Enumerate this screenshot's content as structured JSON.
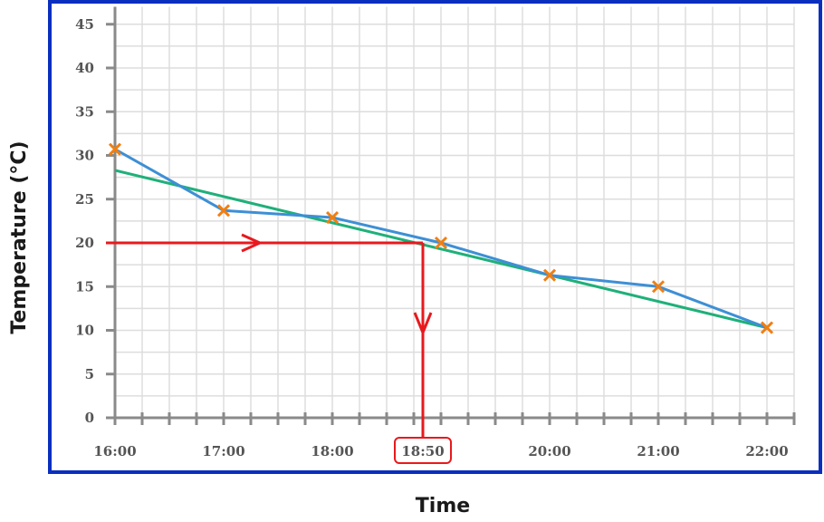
{
  "chart_data": {
    "type": "line",
    "xlabel": "Time",
    "ylabel": "Temperature (°C)",
    "x_tick_labels": [
      "16:00",
      "17:00",
      "18:00",
      "18:50",
      "20:00",
      "21:00",
      "22:00"
    ],
    "x_tick_minutes": [
      0,
      60,
      120,
      170,
      240,
      300,
      360
    ],
    "y_ticks": [
      0,
      5,
      10,
      15,
      20,
      25,
      30,
      35,
      40,
      45
    ],
    "ylim": [
      0,
      47
    ],
    "xlim": [
      "16:00",
      "22:15"
    ],
    "grid": true,
    "series": [
      {
        "x": [
          "16:00",
          "17:00",
          "18:00",
          "19:00",
          "20:00",
          "21:00",
          "22:00"
        ],
        "values": [
          30.7,
          23.7,
          22.9,
          20.0,
          16.3,
          15.0,
          10.3
        ]
      }
    ],
    "trend_line": {
      "x": [
        "16:00",
        "22:00"
      ],
      "values": [
        28.3,
        10.3
      ]
    },
    "annotation": {
      "from_temperature": 20,
      "to_time": "18:50",
      "highlighted_label": "18:50"
    },
    "colors": {
      "frame": "#0a2fbf",
      "grid": "#dddddd",
      "axis": "#8a8a8a",
      "data_line": "#3d8fd6",
      "markers": "#f07f12",
      "trend_line": "#1fb07a",
      "annotation": "#e8191e"
    }
  }
}
